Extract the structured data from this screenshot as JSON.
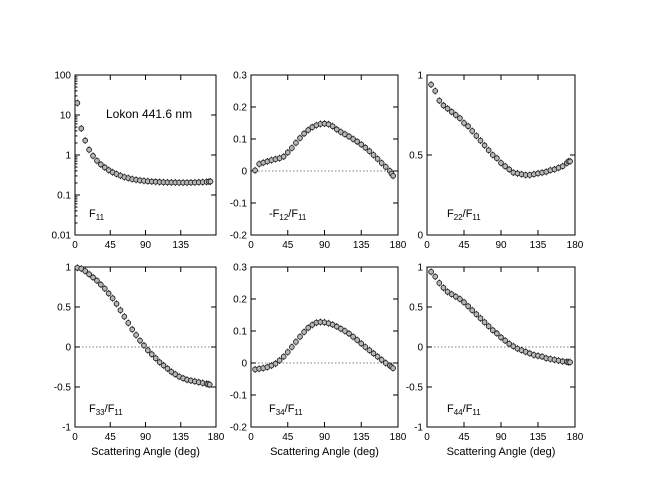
{
  "figure": {
    "annotation": "Lokon 441.6 nm"
  },
  "chart_data": [
    {
      "type": "scatter",
      "panel": "F11",
      "label_main": "F",
      "label_sub": "11",
      "label_rest": "",
      "label_sub2": "",
      "xlabel": "",
      "yscale": "log",
      "xlim": [
        0,
        180
      ],
      "ylim": [
        0.01,
        100
      ],
      "xticks": [
        "0",
        "45",
        "90",
        "135"
      ],
      "yticks": [
        "0.01",
        "0.1",
        "1",
        "10",
        "100"
      ],
      "zero_line": false,
      "x": [
        3,
        8,
        13,
        18,
        23,
        28,
        33,
        38,
        43,
        48,
        53,
        58,
        63,
        68,
        73,
        78,
        83,
        88,
        93,
        98,
        103,
        108,
        113,
        118,
        123,
        128,
        133,
        138,
        143,
        148,
        153,
        158,
        163,
        168,
        171,
        173
      ],
      "y": [
        20,
        4.6,
        2.3,
        1.35,
        0.95,
        0.72,
        0.58,
        0.49,
        0.42,
        0.37,
        0.335,
        0.305,
        0.28,
        0.265,
        0.25,
        0.24,
        0.232,
        0.226,
        0.221,
        0.217,
        0.214,
        0.211,
        0.209,
        0.207,
        0.206,
        0.205,
        0.204,
        0.204,
        0.204,
        0.205,
        0.206,
        0.208,
        0.21,
        0.213,
        0.216,
        0.218
      ]
    },
    {
      "type": "scatter",
      "panel": "-F12/F11",
      "label_main": "-F",
      "label_sub": "12",
      "label_rest": "/F",
      "label_sub2": "11",
      "xlabel": "",
      "yscale": "linear",
      "xlim": [
        0,
        180
      ],
      "ylim": [
        -0.2,
        0.3
      ],
      "xticks": [
        "0",
        "45",
        "90",
        "135",
        "180"
      ],
      "yticks": [
        "-0.2",
        "-0.1",
        "0",
        "0.1",
        "0.2",
        "0.3"
      ],
      "zero_line": true,
      "x": [
        5,
        10,
        15,
        20,
        25,
        30,
        35,
        40,
        45,
        50,
        55,
        60,
        65,
        70,
        75,
        80,
        85,
        90,
        95,
        100,
        105,
        110,
        115,
        120,
        125,
        130,
        135,
        140,
        145,
        150,
        155,
        160,
        165,
        170,
        172,
        174
      ],
      "y": [
        0.002,
        0.022,
        0.026,
        0.03,
        0.034,
        0.037,
        0.04,
        0.045,
        0.058,
        0.072,
        0.088,
        0.103,
        0.117,
        0.128,
        0.137,
        0.143,
        0.147,
        0.148,
        0.146,
        0.14,
        0.13,
        0.122,
        0.115,
        0.108,
        0.1,
        0.092,
        0.083,
        0.073,
        0.062,
        0.05,
        0.038,
        0.025,
        0.013,
        0.0,
        -0.008,
        -0.015
      ]
    },
    {
      "type": "scatter",
      "panel": "F22/F11",
      "label_main": "F",
      "label_sub": "22",
      "label_rest": "/F",
      "label_sub2": "11",
      "xlabel": "",
      "yscale": "linear",
      "xlim": [
        0,
        180
      ],
      "ylim": [
        0,
        1
      ],
      "xticks": [
        "0",
        "45",
        "90",
        "135",
        "180"
      ],
      "yticks": [
        "0",
        "0.5",
        "1"
      ],
      "zero_line": false,
      "x": [
        5,
        10,
        15,
        20,
        25,
        30,
        35,
        40,
        45,
        50,
        55,
        60,
        65,
        70,
        75,
        80,
        85,
        90,
        95,
        100,
        105,
        110,
        115,
        120,
        125,
        130,
        135,
        140,
        145,
        150,
        155,
        160,
        165,
        170,
        172,
        174
      ],
      "y": [
        0.94,
        0.9,
        0.84,
        0.81,
        0.79,
        0.77,
        0.75,
        0.73,
        0.7,
        0.68,
        0.65,
        0.62,
        0.59,
        0.56,
        0.53,
        0.5,
        0.48,
        0.45,
        0.43,
        0.41,
        0.39,
        0.385,
        0.38,
        0.375,
        0.375,
        0.38,
        0.385,
        0.39,
        0.395,
        0.405,
        0.41,
        0.42,
        0.43,
        0.45,
        0.46,
        0.46
      ]
    },
    {
      "type": "scatter",
      "panel": "F33/F11",
      "label_main": "F",
      "label_sub": "33",
      "label_rest": "/F",
      "label_sub2": "11",
      "xlabel": "Scattering Angle (deg)",
      "yscale": "linear",
      "xlim": [
        0,
        180
      ],
      "ylim": [
        -1,
        1
      ],
      "xticks": [
        "0",
        "45",
        "90",
        "135",
        "180"
      ],
      "yticks": [
        "-1",
        "-0.5",
        "0",
        "0.5",
        "1"
      ],
      "zero_line": true,
      "x": [
        3,
        8,
        13,
        18,
        23,
        28,
        33,
        38,
        43,
        48,
        53,
        58,
        63,
        68,
        73,
        78,
        83,
        88,
        93,
        98,
        103,
        108,
        113,
        118,
        123,
        128,
        133,
        138,
        143,
        148,
        153,
        158,
        163,
        168,
        170,
        172
      ],
      "y": [
        0.99,
        0.98,
        0.95,
        0.91,
        0.87,
        0.83,
        0.78,
        0.73,
        0.67,
        0.61,
        0.54,
        0.46,
        0.38,
        0.3,
        0.22,
        0.15,
        0.08,
        0.02,
        -0.04,
        -0.09,
        -0.14,
        -0.19,
        -0.23,
        -0.27,
        -0.31,
        -0.34,
        -0.37,
        -0.39,
        -0.41,
        -0.42,
        -0.43,
        -0.44,
        -0.45,
        -0.46,
        -0.465,
        -0.47
      ]
    },
    {
      "type": "scatter",
      "panel": "F34/F11",
      "label_main": "F",
      "label_sub": "34",
      "label_rest": "/F",
      "label_sub2": "11",
      "xlabel": "Scattering Angle (deg)",
      "yscale": "linear",
      "xlim": [
        0,
        180
      ],
      "ylim": [
        -0.2,
        0.3
      ],
      "xticks": [
        "0",
        "45",
        "90",
        "135",
        "180"
      ],
      "yticks": [
        "-0.2",
        "-0.1",
        "0",
        "0.1",
        "0.2",
        "0.3"
      ],
      "zero_line": true,
      "x": [
        5,
        10,
        15,
        20,
        25,
        30,
        35,
        40,
        45,
        50,
        55,
        60,
        65,
        70,
        75,
        80,
        85,
        90,
        95,
        100,
        105,
        110,
        115,
        120,
        125,
        130,
        135,
        140,
        145,
        150,
        155,
        160,
        165,
        170,
        172,
        174
      ],
      "y": [
        -0.02,
        -0.018,
        -0.016,
        -0.013,
        -0.008,
        -0.002,
        0.008,
        0.02,
        0.034,
        0.05,
        0.066,
        0.082,
        0.097,
        0.11,
        0.119,
        0.126,
        0.128,
        0.127,
        0.124,
        0.12,
        0.114,
        0.107,
        0.1,
        0.092,
        0.082,
        0.072,
        0.061,
        0.05,
        0.04,
        0.03,
        0.02,
        0.01,
        0.0,
        -0.008,
        -0.012,
        -0.016
      ]
    },
    {
      "type": "scatter",
      "panel": "F44/F11",
      "label_main": "F",
      "label_sub": "44",
      "label_rest": "/F",
      "label_sub2": "11",
      "xlabel": "Scattering Angle (deg)",
      "yscale": "linear",
      "xlim": [
        0,
        180
      ],
      "ylim": [
        -1,
        1
      ],
      "xticks": [
        "0",
        "45",
        "90",
        "135",
        "180"
      ],
      "yticks": [
        "-1",
        "-0.5",
        "0",
        "0.5",
        "1"
      ],
      "zero_line": true,
      "x": [
        5,
        10,
        15,
        20,
        25,
        30,
        35,
        40,
        45,
        50,
        55,
        60,
        65,
        70,
        75,
        80,
        85,
        90,
        95,
        100,
        105,
        110,
        115,
        120,
        125,
        130,
        135,
        140,
        145,
        150,
        155,
        160,
        165,
        170,
        172,
        174
      ],
      "y": [
        0.94,
        0.88,
        0.8,
        0.74,
        0.69,
        0.66,
        0.63,
        0.6,
        0.56,
        0.51,
        0.46,
        0.41,
        0.36,
        0.31,
        0.26,
        0.21,
        0.17,
        0.12,
        0.08,
        0.04,
        0.01,
        -0.02,
        -0.04,
        -0.06,
        -0.08,
        -0.1,
        -0.11,
        -0.12,
        -0.14,
        -0.15,
        -0.16,
        -0.17,
        -0.18,
        -0.185,
        -0.19,
        -0.19
      ]
    }
  ]
}
